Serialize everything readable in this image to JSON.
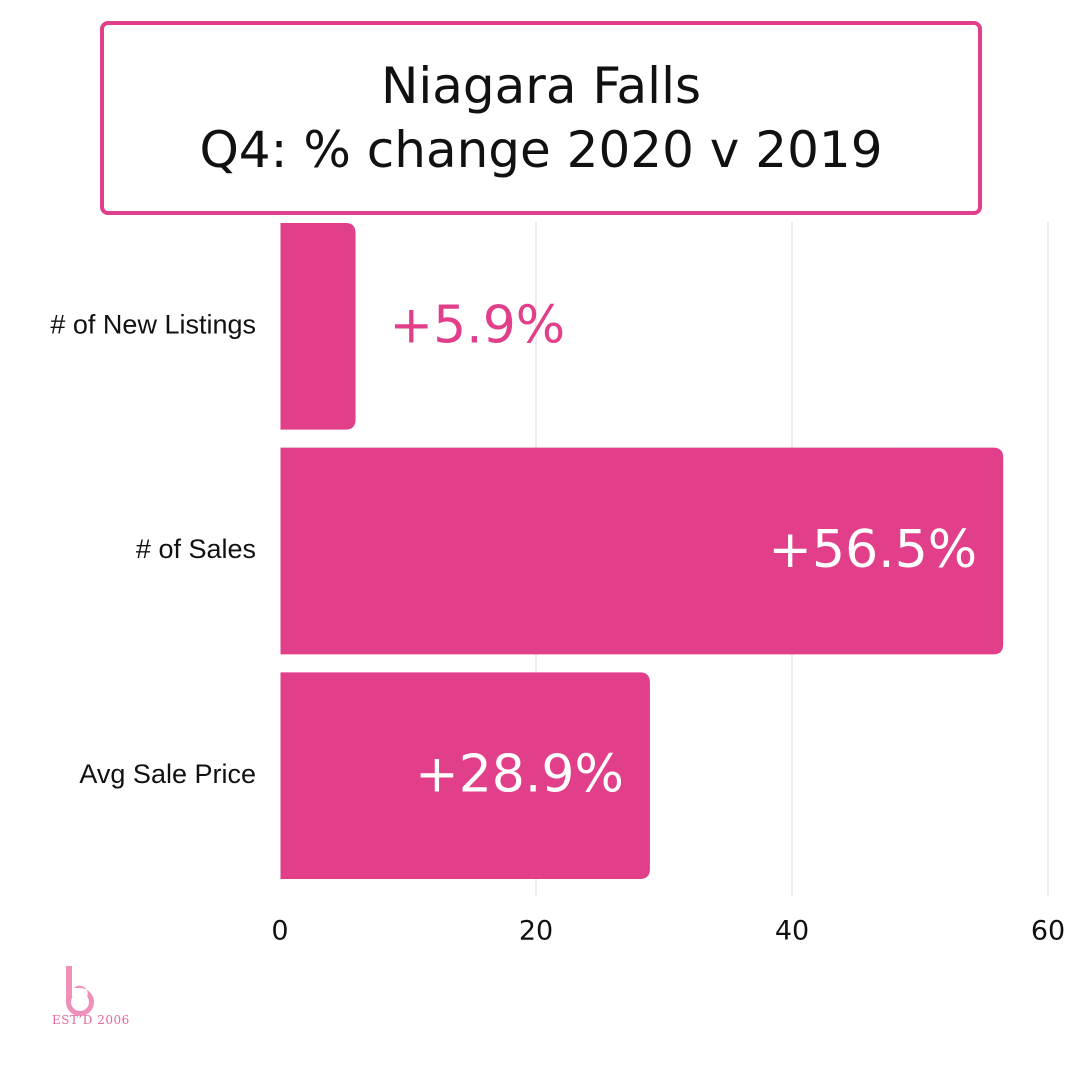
{
  "header": {
    "title_line1": "Niagara Falls",
    "title_line2": "Q4: % change 2020 v 2019"
  },
  "logo": {
    "icon": "b-logo-icon",
    "caption": "EST’D 2006"
  },
  "colors": {
    "accent": "#e23f8b",
    "bar": "#e23f8b",
    "grid": "#d9d9d9",
    "text": "#111111",
    "logo": "#f08fb9"
  },
  "chart_data": {
    "type": "bar",
    "orientation": "horizontal",
    "categories": [
      "# of New Listings",
      "# of Sales",
      "Avg Sale Price"
    ],
    "values": [
      5.9,
      56.5,
      28.9
    ],
    "data_labels": [
      "+5.9%",
      "+56.5%",
      "+28.9%"
    ],
    "xlim": [
      0,
      60
    ],
    "xticks": [
      0,
      20,
      40,
      60
    ],
    "grid": true,
    "legend": "none"
  }
}
